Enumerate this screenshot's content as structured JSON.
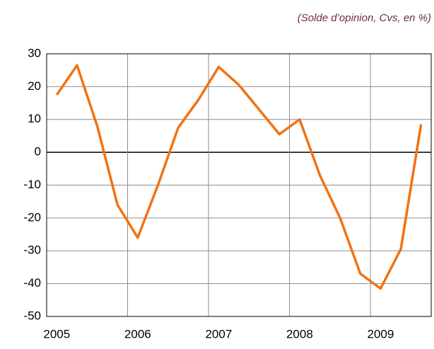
{
  "chart_data": {
    "type": "line",
    "subtitle": "(Solde d’opinion, Cvs, en %)",
    "categories": [
      "2005",
      null,
      null,
      null,
      "2006",
      null,
      null,
      null,
      "2007",
      null,
      null,
      null,
      "2008",
      null,
      null,
      null,
      "2009",
      null,
      null
    ],
    "series": [
      {
        "color": "#f07314",
        "values": [
          17.5,
          26.5,
          8,
          -16,
          -26,
          -10,
          7.5,
          16,
          26,
          20.5,
          13,
          5.5,
          10,
          -7,
          -20,
          -37,
          -41.5,
          -29.5,
          8.5
        ]
      }
    ],
    "ylim": [
      -50,
      30
    ],
    "yticks": [
      -50,
      -40,
      -30,
      -20,
      -10,
      0,
      10,
      20,
      30
    ],
    "grid": true
  }
}
